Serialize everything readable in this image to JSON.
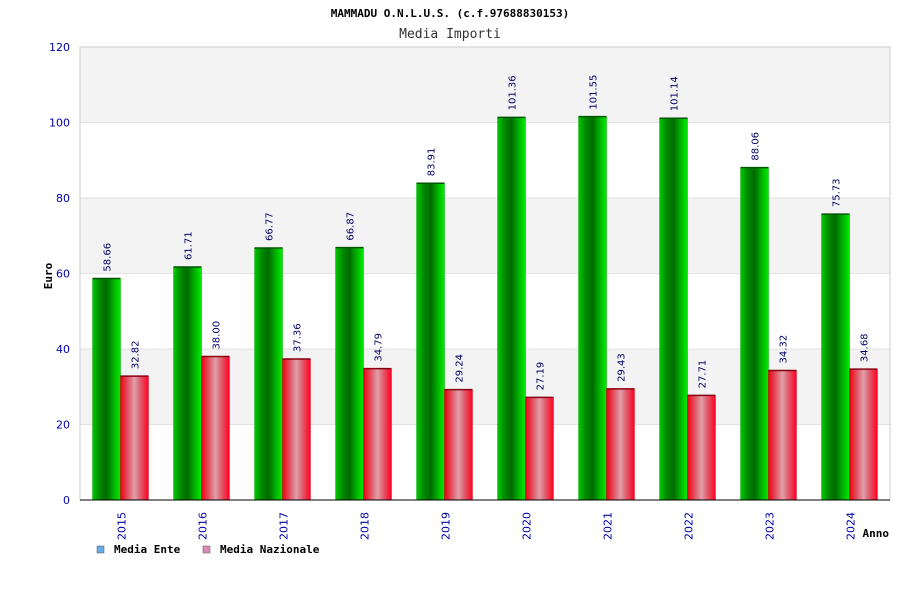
{
  "chart_data": {
    "type": "bar",
    "title": "MAMMADU O.N.L.U.S. (c.f.97688830153)",
    "subtitle": "Media Importi",
    "xlabel": "Anno",
    "ylabel": "Euro",
    "ylim": [
      0,
      120
    ],
    "yticks": [
      "0",
      "20",
      "40",
      "60",
      "80",
      "100",
      "120"
    ],
    "grid": true,
    "legend_position": "bottom-left",
    "categories": [
      "2015",
      "2016",
      "2017",
      "2018",
      "2019",
      "2020",
      "2021",
      "2022",
      "2023",
      "2024"
    ],
    "series": [
      {
        "name": "Media Ente",
        "color": "#00cc00",
        "legend_color": "#66aaee",
        "values": [
          58.66,
          61.71,
          66.77,
          66.87,
          83.91,
          101.36,
          101.55,
          101.14,
          88.06,
          75.73
        ],
        "labels": [
          "58.66",
          "61.71",
          "66.77",
          "66.87",
          "83.91",
          "101.36",
          "101.55",
          "101.14",
          "88.06",
          "75.73"
        ]
      },
      {
        "name": "Media Nazionale",
        "color": "#ff0022",
        "legend_color": "#dd88bb",
        "values": [
          32.82,
          38.0,
          37.36,
          34.79,
          29.24,
          27.19,
          29.43,
          27.71,
          34.32,
          34.68
        ],
        "labels": [
          "32.82",
          "38.00",
          "37.36",
          "34.79",
          "29.24",
          "27.19",
          "29.43",
          "27.71",
          "34.32",
          "34.68"
        ]
      }
    ]
  }
}
